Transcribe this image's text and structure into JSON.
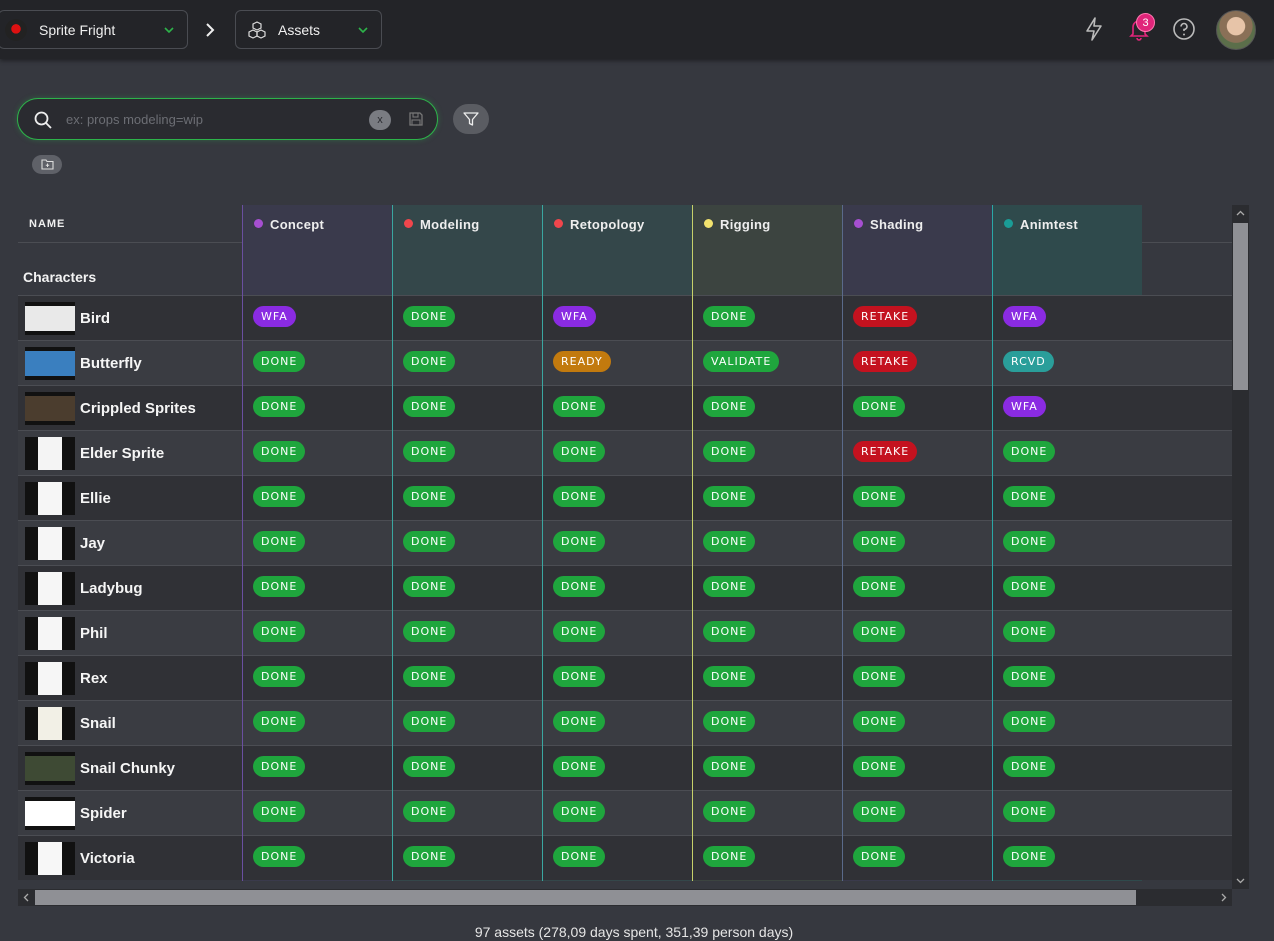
{
  "topbar": {
    "project_label": "Sprite Fright",
    "section_label": "Assets",
    "notification_count": "3",
    "icons": [
      "lightning-icon",
      "bell-icon",
      "help-icon"
    ]
  },
  "search": {
    "placeholder": "ex: props modeling=wip",
    "clear_label": "x"
  },
  "table": {
    "name_header": "NAME",
    "group_title": "Characters",
    "columns": [
      {
        "label": "Concept",
        "color": "#a64fd1",
        "bg": "#3a3a4c",
        "sep": "#6a4fa0"
      },
      {
        "label": "Modeling",
        "color": "#f0464c",
        "bg": "#34474a",
        "sep": "#3aa6a0"
      },
      {
        "label": "Retopology",
        "color": "#f0464c",
        "bg": "#34474a",
        "sep": "#3aa6a0"
      },
      {
        "label": "Rigging",
        "color": "#f2e26e",
        "bg": "#3c4440",
        "sep": "#c6d06a"
      },
      {
        "label": "Shading",
        "color": "#a64fd1",
        "bg": "#3a3a4c",
        "sep": "#5a6a8a"
      },
      {
        "label": "Animtest",
        "color": "#1a9c96",
        "bg": "#2f4a4c",
        "sep": "#2aa7a6"
      }
    ],
    "status_colors": {
      "DONE": "#1fa63d",
      "WFA": "#8a2be2",
      "RETAKE": "#c4121f",
      "READY": "#c27a0e",
      "VALIDATE": "#1fa63d",
      "RCVD": "#2a9e9a"
    },
    "rows": [
      {
        "name": "Bird",
        "statuses": [
          "WFA",
          "DONE",
          "WFA",
          "DONE",
          "RETAKE",
          "WFA"
        ]
      },
      {
        "name": "Butterfly",
        "statuses": [
          "DONE",
          "DONE",
          "READY",
          "VALIDATE",
          "RETAKE",
          "RCVD"
        ]
      },
      {
        "name": "Crippled Sprites",
        "statuses": [
          "DONE",
          "DONE",
          "DONE",
          "DONE",
          "DONE",
          "WFA"
        ]
      },
      {
        "name": "Elder Sprite",
        "statuses": [
          "DONE",
          "DONE",
          "DONE",
          "DONE",
          "RETAKE",
          "DONE"
        ]
      },
      {
        "name": "Ellie",
        "statuses": [
          "DONE",
          "DONE",
          "DONE",
          "DONE",
          "DONE",
          "DONE"
        ]
      },
      {
        "name": "Jay",
        "statuses": [
          "DONE",
          "DONE",
          "DONE",
          "DONE",
          "DONE",
          "DONE"
        ]
      },
      {
        "name": "Ladybug",
        "statuses": [
          "DONE",
          "DONE",
          "DONE",
          "DONE",
          "DONE",
          "DONE"
        ]
      },
      {
        "name": "Phil",
        "statuses": [
          "DONE",
          "DONE",
          "DONE",
          "DONE",
          "DONE",
          "DONE"
        ]
      },
      {
        "name": "Rex",
        "statuses": [
          "DONE",
          "DONE",
          "DONE",
          "DONE",
          "DONE",
          "DONE"
        ]
      },
      {
        "name": "Snail",
        "statuses": [
          "DONE",
          "DONE",
          "DONE",
          "DONE",
          "DONE",
          "DONE"
        ]
      },
      {
        "name": "Snail Chunky",
        "statuses": [
          "DONE",
          "DONE",
          "DONE",
          "DONE",
          "DONE",
          "DONE"
        ]
      },
      {
        "name": "Spider",
        "statuses": [
          "DONE",
          "DONE",
          "DONE",
          "DONE",
          "DONE",
          "DONE"
        ]
      },
      {
        "name": "Victoria",
        "statuses": [
          "DONE",
          "DONE",
          "DONE",
          "DONE",
          "DONE",
          "DONE"
        ]
      }
    ]
  },
  "footer": {
    "summary": "97 assets (278,09 days spent, 351,39 person days)"
  }
}
